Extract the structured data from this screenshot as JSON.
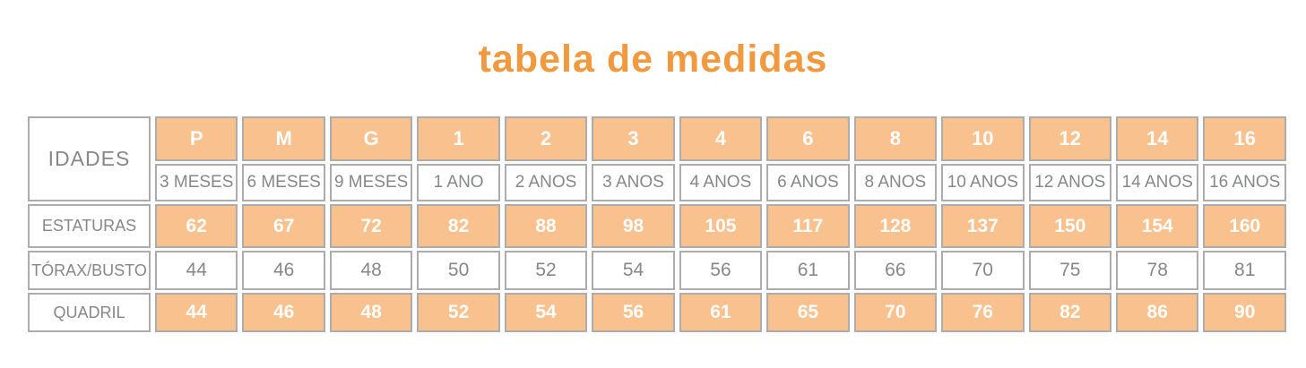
{
  "title": "tabela de medidas",
  "colors": {
    "title_orange": "#F0993E",
    "cell_orange": "#F8C18D",
    "border_gray": "#ACACAC",
    "text_gray": "#85878A",
    "highlight_text": "#FFFFFF"
  },
  "chart_data": {
    "type": "table",
    "title": "tabela de medidas",
    "corner_label": "IDADES",
    "columns_sizes": [
      "P",
      "M",
      "G",
      "1",
      "2",
      "3",
      "4",
      "6",
      "8",
      "10",
      "12",
      "14",
      "16"
    ],
    "columns_ages": [
      "3 MESES",
      "6 MESES",
      "9 MESES",
      "1 ANO",
      "2 ANOS",
      "3 ANOS",
      "4 ANOS",
      "6 ANOS",
      "8 ANOS",
      "10 ANOS",
      "12 ANOS",
      "14 ANOS",
      "16 ANOS"
    ],
    "rows": [
      {
        "label": "ESTATURAS",
        "highlight": true,
        "values": [
          62,
          67,
          72,
          82,
          88,
          98,
          105,
          117,
          128,
          137,
          150,
          154,
          160
        ]
      },
      {
        "label": "TÓRAX/BUSTO",
        "highlight": false,
        "values": [
          44,
          46,
          48,
          50,
          52,
          54,
          56,
          61,
          66,
          70,
          75,
          78,
          81
        ]
      },
      {
        "label": "QUADRIL",
        "highlight": true,
        "values": [
          44,
          46,
          48,
          52,
          54,
          56,
          61,
          65,
          70,
          76,
          82,
          86,
          90
        ]
      }
    ],
    "layout": {
      "grid": "separated-cells",
      "header_fill": "orange",
      "alternating_highlight_rows": [
        0,
        2
      ]
    }
  }
}
